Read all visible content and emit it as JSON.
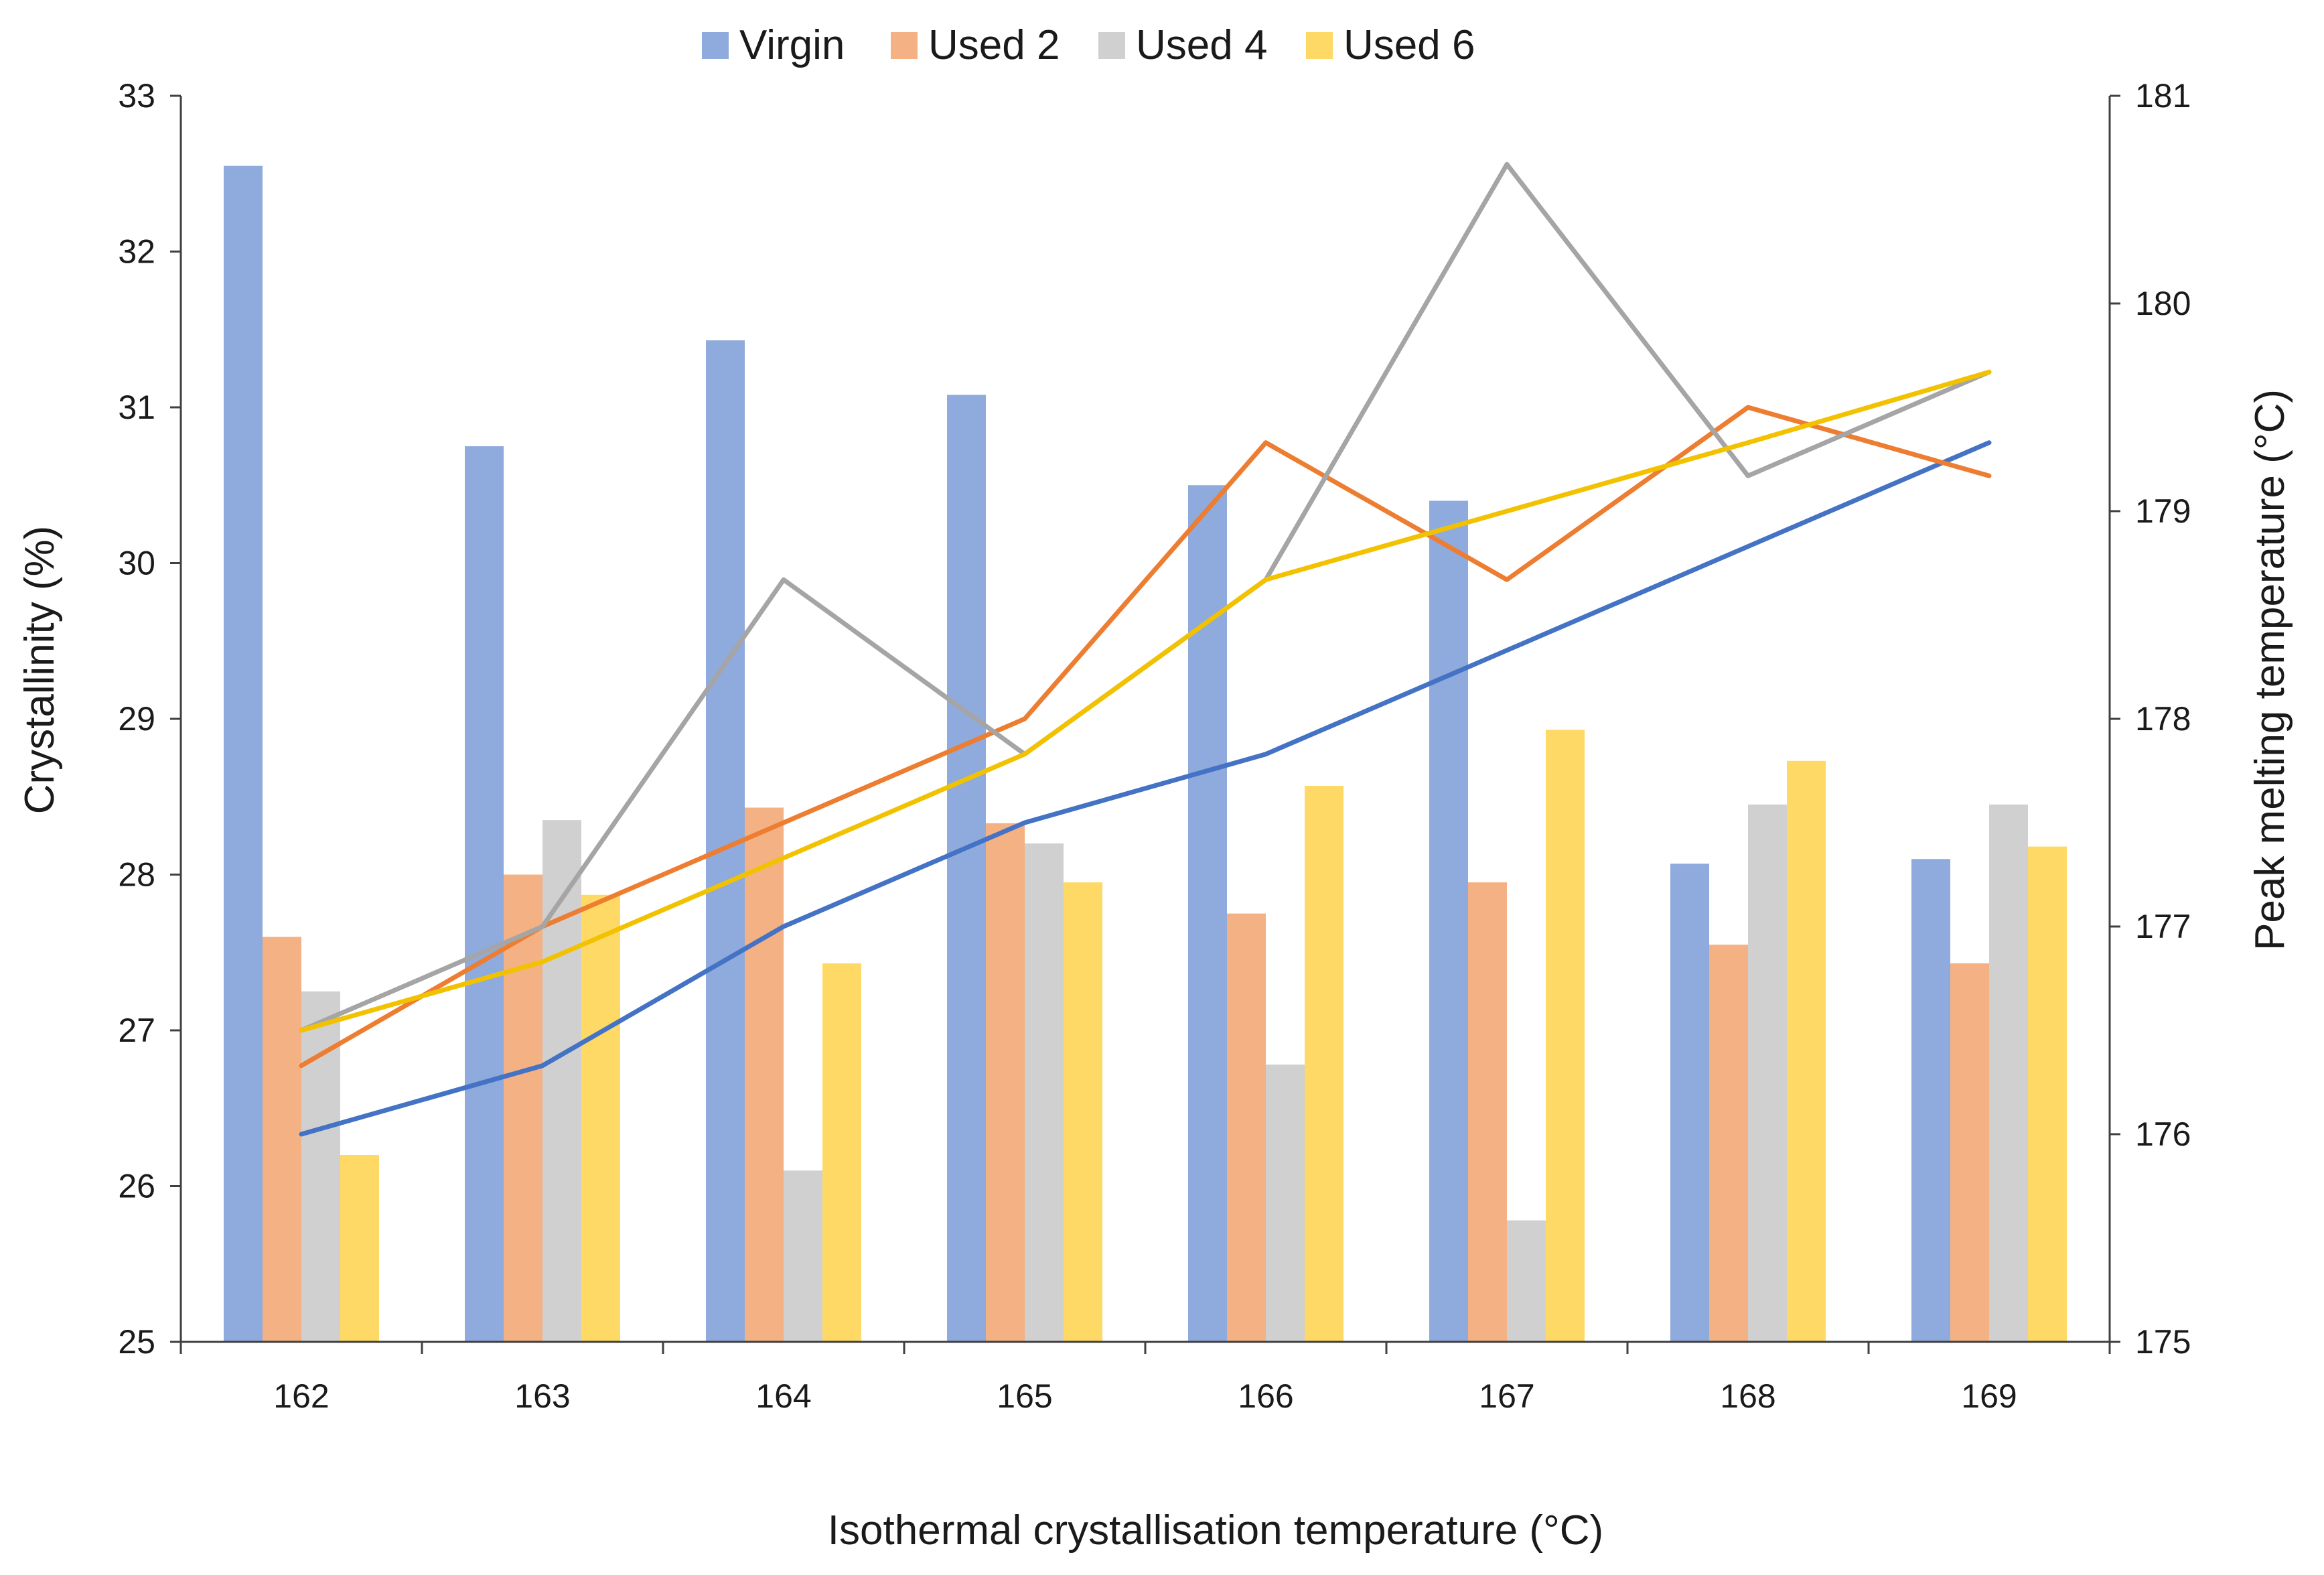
{
  "chart_data": {
    "type": "bar",
    "title": "",
    "xlabel": "Isothermal crystallisation temperature (°C)",
    "ylabel": "Crystallinity (%)",
    "y2label": "Peak melting temperature (°C)",
    "ylim": [
      25,
      33
    ],
    "y2lim": [
      175,
      181
    ],
    "yticks": [
      "25",
      "26",
      "27",
      "28",
      "29",
      "30",
      "31",
      "32",
      "33"
    ],
    "y2ticks": [
      "175",
      "176",
      "177",
      "178",
      "179",
      "180",
      "181"
    ],
    "categories": [
      "162",
      "163",
      "164",
      "165",
      "166",
      "167",
      "168",
      "169"
    ],
    "grid": false,
    "legend_position": "top-center",
    "series": [
      {
        "name": "Virgin",
        "color": "#8faadc",
        "line_color": "#4472c4",
        "values": [
          32.55,
          30.75,
          31.43,
          31.08,
          30.5,
          30.4,
          28.07,
          28.1
        ],
        "line_values": [
          176.0,
          176.33,
          177.0,
          177.5,
          177.83,
          178.33,
          178.83,
          179.33
        ]
      },
      {
        "name": "Used 2",
        "color": "#f4b183",
        "line_color": "#ed7d31",
        "values": [
          27.6,
          28.0,
          28.43,
          28.33,
          27.75,
          27.95,
          27.55,
          27.43
        ],
        "line_values": [
          176.33,
          177.0,
          177.5,
          178.0,
          179.33,
          178.67,
          179.5,
          179.17
        ]
      },
      {
        "name": "Used 4",
        "color": "#d0d0d0",
        "line_color": "#a5a5a5",
        "values": [
          27.25,
          28.35,
          26.1,
          28.2,
          26.78,
          25.78,
          28.45,
          28.45
        ],
        "line_values": [
          176.5,
          177.0,
          178.67,
          177.83,
          178.67,
          180.67,
          179.17,
          179.67
        ]
      },
      {
        "name": "Used 6",
        "color": "#ffd966",
        "line_color": "#f2c200",
        "values": [
          26.2,
          27.87,
          27.43,
          27.95,
          28.57,
          28.93,
          28.73,
          28.18
        ],
        "line_values": [
          176.5,
          176.83,
          177.33,
          177.83,
          178.67,
          179.0,
          179.33,
          179.67
        ]
      }
    ]
  }
}
